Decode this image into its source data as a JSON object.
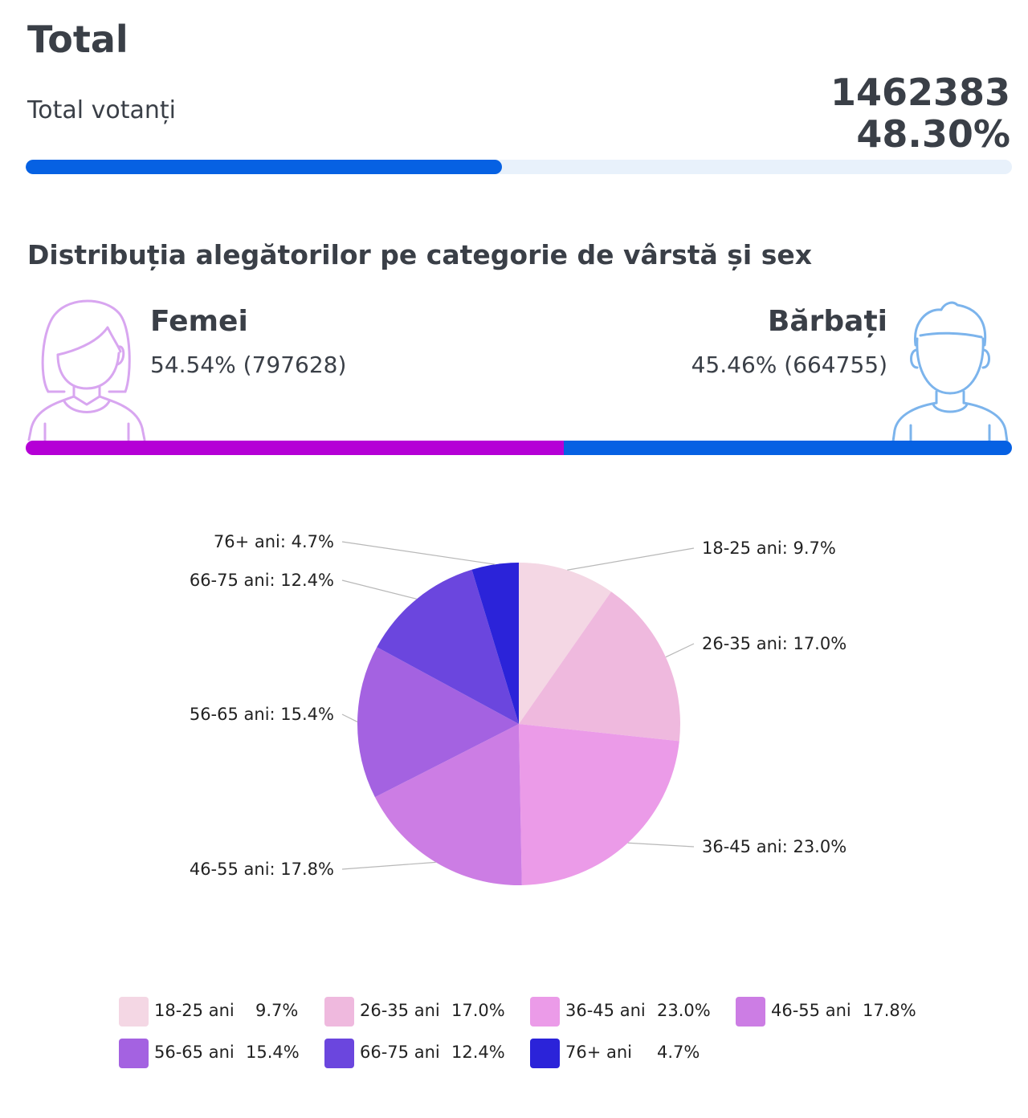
{
  "header": {
    "title": "Total",
    "voters_label": "Total votanți",
    "voters_count": "1462383",
    "voters_percent_text": "48.30%",
    "voters_percent": 48.3,
    "progress_color": "#0661e3",
    "progress_track_color": "#e8f1fb"
  },
  "section": {
    "title": "Distribuția alegătorilor pe categorie de vârstă și sex"
  },
  "gender": {
    "female": {
      "name": "Femei",
      "stat": "54.54% (797628)",
      "percent": 54.54,
      "color": "#b500d6",
      "icon": "woman-avatar-icon"
    },
    "male": {
      "name": "Bărbați",
      "stat": "45.46% (664755)",
      "percent": 45.46,
      "color": "#0661e3",
      "icon": "man-avatar-icon"
    }
  },
  "chart_data": {
    "type": "pie",
    "title": "",
    "categories": [
      "18-25 ani",
      "26-35 ani",
      "36-45 ani",
      "46-55 ani",
      "56-65 ani",
      "66-75 ani",
      "76+ ani"
    ],
    "values": [
      9.7,
      17.0,
      23.0,
      17.8,
      15.4,
      12.4,
      4.7
    ],
    "labels": [
      "18-25 ani: 9.7%",
      "26-35 ani: 17.0%",
      "36-45 ani: 23.0%",
      "46-55 ani: 17.8%",
      "56-65 ani: 15.4%",
      "66-75 ani: 12.4%",
      "76+ ani: 4.7%"
    ],
    "value_labels": [
      "9.7%",
      "17.0%",
      "23.0%",
      "17.8%",
      "15.4%",
      "12.4%",
      "4.7%"
    ],
    "colors": [
      "#f4d7e4",
      "#efb9de",
      "#eb9be8",
      "#cc7de4",
      "#a462e1",
      "#6b46de",
      "#2b23d9"
    ],
    "legend_position": "bottom",
    "start_angle": "top, clockwise"
  }
}
